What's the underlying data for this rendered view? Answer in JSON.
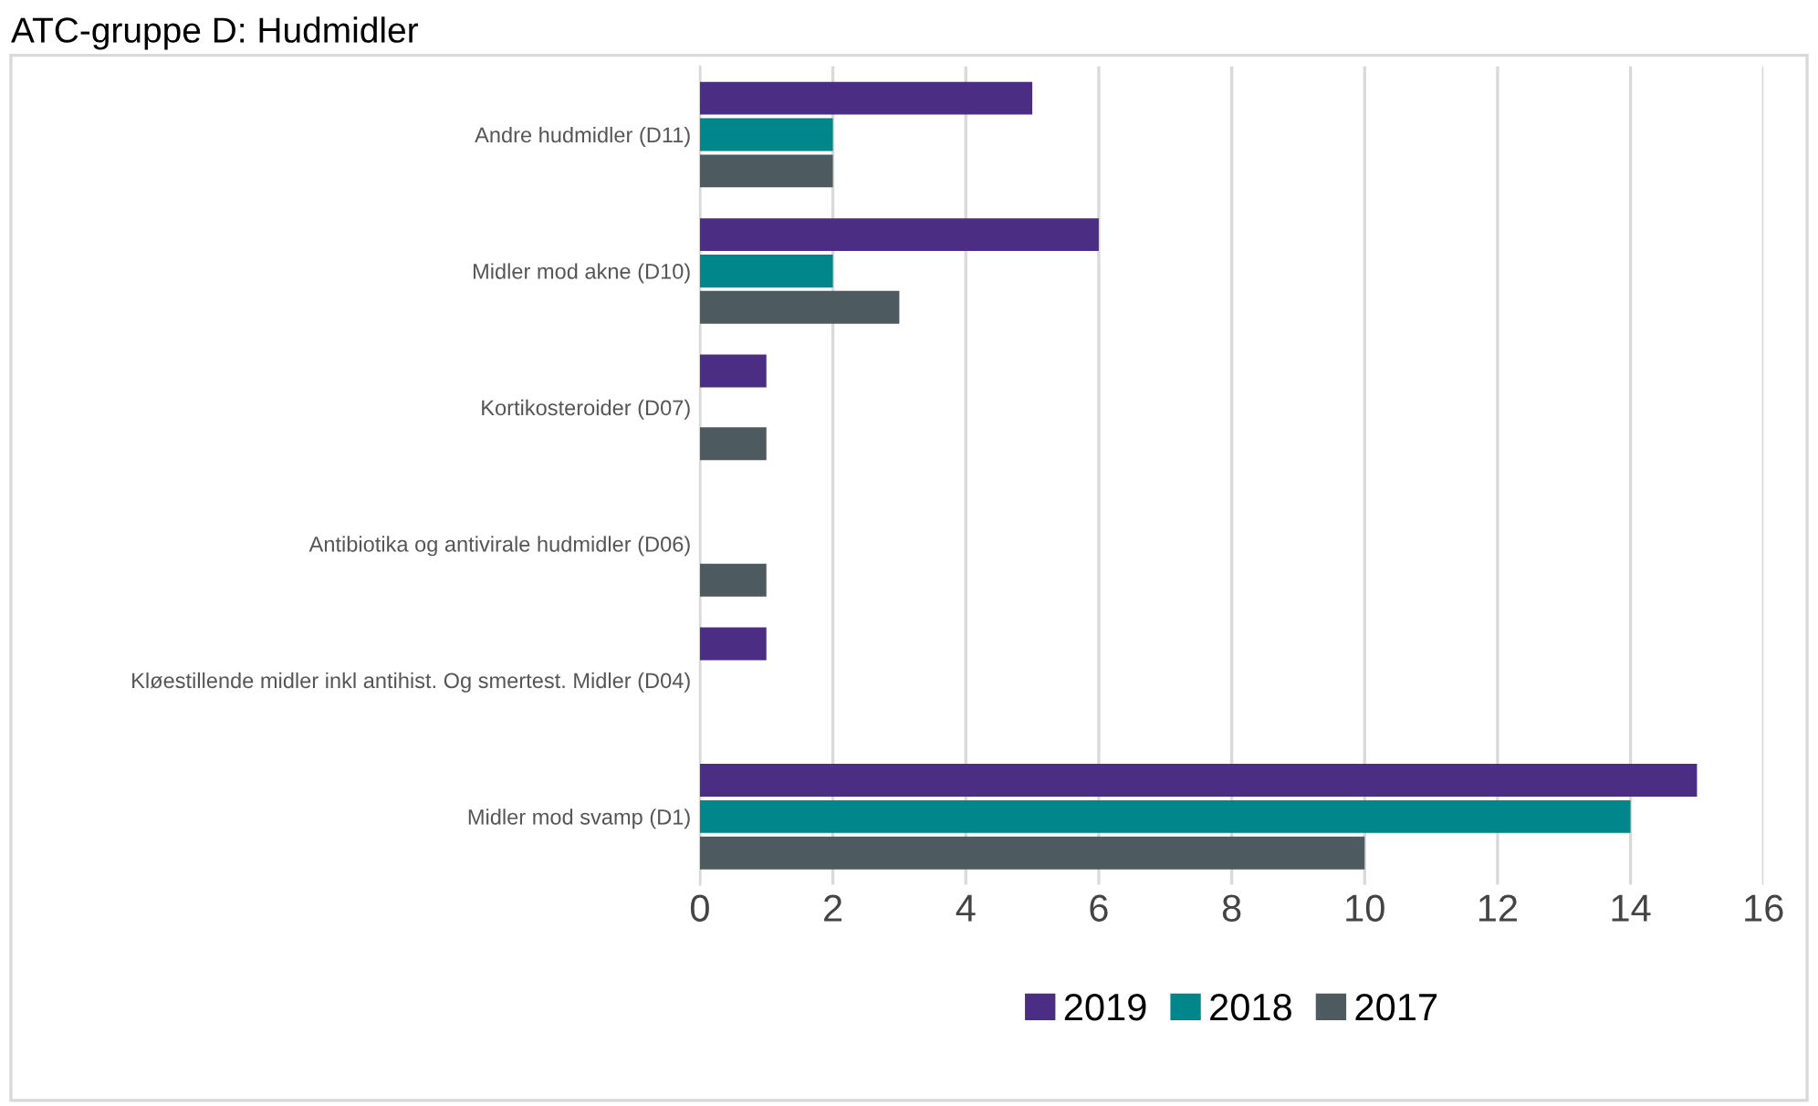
{
  "chart_data": {
    "type": "bar",
    "orientation": "horizontal",
    "title": "ATC-gruppe D: Hudmidler",
    "categories": [
      "Andre hudmidler (D11)",
      "Midler mod akne (D10)",
      "Kortikosteroider (D07)",
      "Antibiotika og antivirale hudmidler (D06)",
      "Kløestillende midler inkl antihist. Og smertest. Midler (D04)",
      "Midler mod svamp (D1)"
    ],
    "series": [
      {
        "name": "2019",
        "color": "#4b2e83",
        "values": [
          5,
          6,
          1,
          0,
          1,
          15
        ]
      },
      {
        "name": "2018",
        "color": "#00868b",
        "values": [
          2,
          2,
          0,
          0,
          0,
          14
        ]
      },
      {
        "name": "2017",
        "color": "#4d5a60",
        "values": [
          2,
          3,
          1,
          1,
          0,
          10
        ]
      }
    ],
    "xlim": [
      0,
      16
    ],
    "xticks": [
      0,
      2,
      4,
      6,
      8,
      10,
      12,
      14,
      16
    ],
    "grid": "x",
    "legend": "bottom"
  }
}
